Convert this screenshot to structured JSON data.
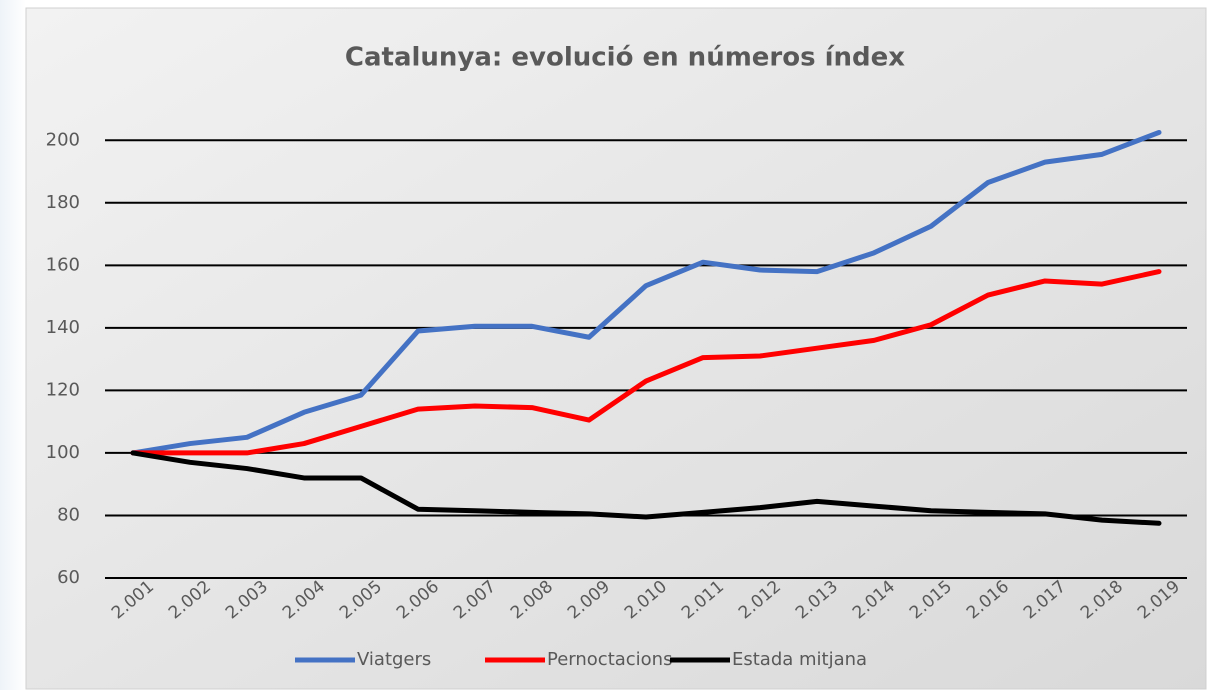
{
  "chart_data": {
    "type": "line",
    "title": "Catalunya: evolució en números índex",
    "categories": [
      "2.001",
      "2.002",
      "2.003",
      "2.004",
      "2.005",
      "2.006",
      "2.007",
      "2.008",
      "2.009",
      "2.010",
      "2.011",
      "2.012",
      "2.013",
      "2.014",
      "2.015",
      "2.016",
      "2.017",
      "2.018",
      "2.019"
    ],
    "series": [
      {
        "name": "Viatgers",
        "color": "#4472c4",
        "values": [
          100,
          103,
          105,
          113,
          118.5,
          139,
          140.5,
          140.5,
          137,
          153.5,
          161,
          158.5,
          158,
          164,
          172.5,
          186.5,
          193,
          195.5,
          202.5
        ]
      },
      {
        "name": "Pernoctacions",
        "color": "#ff0000",
        "values": [
          100,
          100,
          100,
          103,
          108.5,
          114,
          115,
          114.5,
          110.5,
          123,
          130.5,
          131,
          133.5,
          136,
          141,
          150.5,
          155,
          154,
          158
        ]
      },
      {
        "name": "Estada mitjana",
        "color": "#000000",
        "values": [
          100,
          97,
          95,
          92,
          92,
          82,
          81.5,
          81,
          80.5,
          79.5,
          81,
          82.5,
          84.5,
          83,
          81.5,
          81,
          80.5,
          78.5,
          77.5
        ]
      }
    ],
    "ylim": [
      60,
      210
    ],
    "yticks": [
      60,
      80,
      100,
      120,
      140,
      160,
      180,
      200
    ],
    "grid": true,
    "legend": "bottom"
  }
}
